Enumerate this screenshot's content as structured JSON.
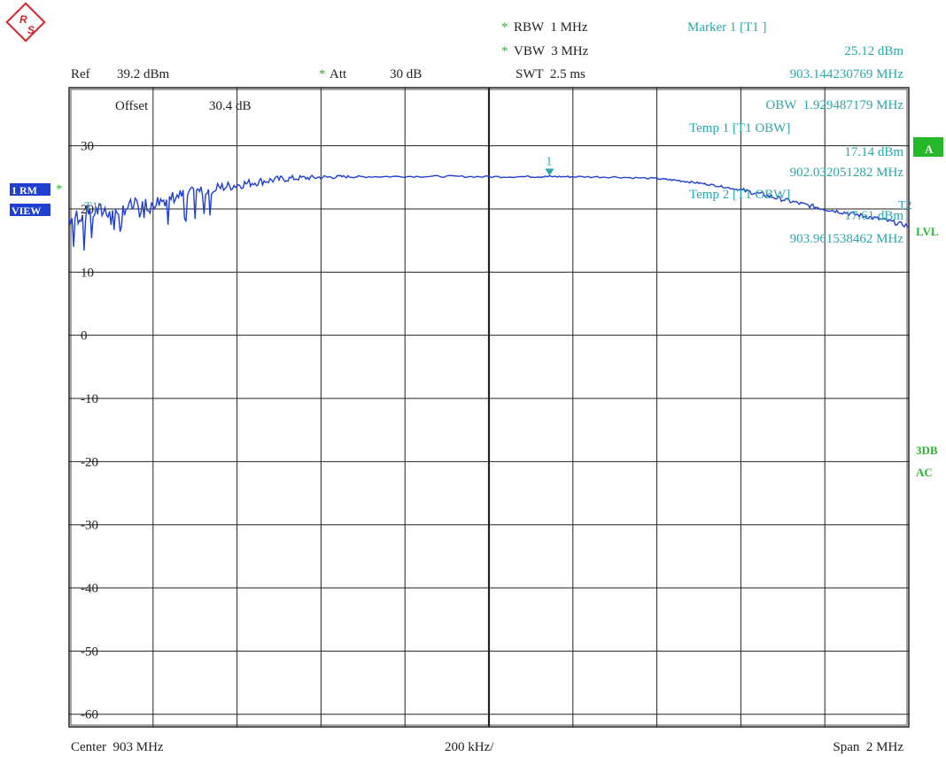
{
  "logo": {
    "text_top": "R",
    "text_bottom": "S",
    "color": "#d4262b"
  },
  "header": {
    "ref_label": "Ref",
    "ref_value": "39.2 dBm",
    "att_star": "*",
    "att_label": "Att",
    "att_value": "30 dB",
    "rbw_star": "*",
    "rbw": "RBW  1 MHz",
    "vbw_star": "*",
    "vbw": "VBW  3 MHz",
    "swt": "SWT  2.5 ms",
    "offset_label": "Offset",
    "offset_value": "30.4 dB"
  },
  "markers_panel": {
    "marker1_title": "Marker 1 [T1 ]",
    "marker1_level": "25.12 dBm",
    "marker1_freq": "903.144230769 MHz",
    "obw": "OBW  1.929487179 MHz",
    "temp1_title": "Temp 1 [T1 OBW]",
    "temp1_level": "17.14 dBm",
    "temp1_freq": "902.032051282 MHz",
    "temp2_title": "Temp 2 [T1 OBW]",
    "temp2_level": "17.61 dBm",
    "temp2_freq": "903.961538462 MHz"
  },
  "left_side": {
    "trace_label_1": "1 RM",
    "trace_label_2": "VIEW",
    "star": "*"
  },
  "right_side": {
    "a_badge": "A",
    "lvl_badge": "LVL",
    "db3_badge_1": "3DB",
    "db3_badge_2": "AC"
  },
  "trace_markers": {
    "t1": "T1",
    "t2": "T2",
    "m1": "1"
  },
  "footer": {
    "center": "Center  903 MHz",
    "per_div": "200 kHz/",
    "span": "Span  2 MHz"
  },
  "colors": {
    "trace": "#1f3fd0",
    "annotation": "#2aa6ac",
    "grid": "#222222",
    "badge": "#25b82a",
    "side_label": "#1f3fd0"
  },
  "chart_data": {
    "type": "line",
    "xlabel": "",
    "ylabel": "",
    "x_unit": "MHz",
    "y_unit": "dBm",
    "xlim": [
      902.0,
      904.0
    ],
    "ylim": [
      -62,
      39.2
    ],
    "y_ticks": [
      30,
      20,
      10,
      0,
      -10,
      -20,
      -30,
      -40,
      -50,
      -60
    ],
    "y_tick_labels": [
      "30",
      "20",
      "10",
      "0",
      "-10",
      "-20",
      "-30",
      "-40",
      "-50",
      "-60"
    ],
    "x_divisions": 10,
    "grid": true,
    "series": [
      {
        "x": [
          902.0,
          902.05,
          902.1,
          902.15,
          902.2,
          902.25,
          902.3,
          902.35,
          902.4,
          902.45,
          902.5,
          902.55,
          902.6,
          902.65,
          902.7,
          902.8,
          902.9,
          903.0,
          903.1,
          903.144,
          903.2,
          903.3,
          903.4,
          903.45,
          903.5,
          903.55,
          903.6,
          903.65,
          903.7,
          903.75,
          903.8,
          903.85,
          903.9,
          903.95,
          904.0
        ],
        "y": [
          18.6,
          19.4,
          19.9,
          20.4,
          21.0,
          21.9,
          22.6,
          23.3,
          23.8,
          24.3,
          24.7,
          24.9,
          25.0,
          25.1,
          25.1,
          25.15,
          25.15,
          25.1,
          25.1,
          25.12,
          25.1,
          25.05,
          24.8,
          24.5,
          24.1,
          23.6,
          23.0,
          22.3,
          21.5,
          20.7,
          20.0,
          19.4,
          18.8,
          18.1,
          17.3
        ]
      }
    ],
    "markers": [
      {
        "name": "1",
        "x": 903.144230769,
        "y": 25.12
      },
      {
        "name": "T1",
        "x": 902.032051282,
        "y": 17.14
      },
      {
        "name": "T2",
        "x": 903.961538462,
        "y": 17.61
      }
    ]
  }
}
